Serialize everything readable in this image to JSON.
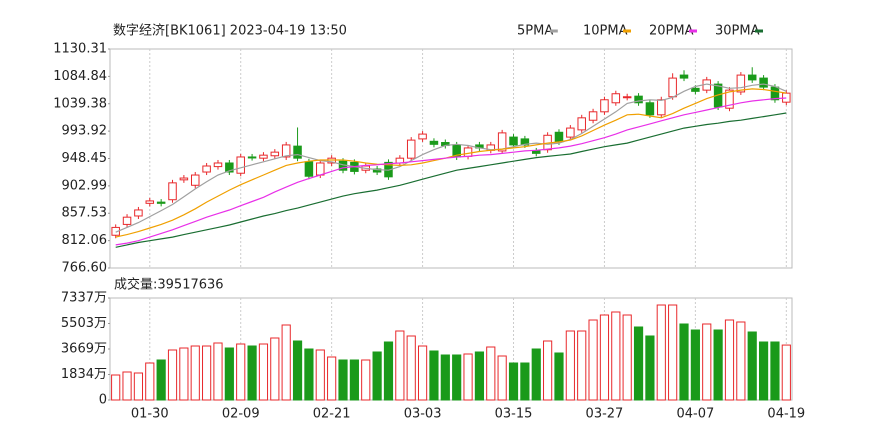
{
  "chart_data": [
    {
      "type": "candlestick",
      "title": "数字经济[BK1061] 2023-04-19 13:50",
      "categories": [
        null,
        null,
        null,
        "01-30",
        null,
        null,
        null,
        null,
        null,
        null,
        null,
        "02-09",
        null,
        null,
        null,
        null,
        null,
        null,
        null,
        "02-21",
        null,
        null,
        null,
        null,
        null,
        null,
        null,
        "03-03",
        null,
        null,
        null,
        null,
        null,
        null,
        null,
        "03-15",
        null,
        null,
        null,
        null,
        null,
        null,
        null,
        "03-27",
        null,
        null,
        null,
        null,
        null,
        null,
        null,
        "04-07",
        null,
        null,
        null,
        null,
        null,
        null,
        null,
        "04-19"
      ],
      "open": [
        821,
        839,
        853,
        874,
        876,
        880,
        913,
        904,
        926,
        935,
        941,
        924,
        951,
        949,
        953,
        951,
        969,
        943,
        921,
        941,
        944,
        942,
        929,
        931,
        942,
        941,
        949,
        981,
        977,
        975,
        971,
        952,
        971,
        962,
        961,
        984,
        981,
        961,
        963,
        992,
        984,
        996,
        1012,
        1026,
        1041,
        1050,
        1052,
        1041,
        1021,
        1051,
        1087,
        1065,
        1062,
        1072,
        1032,
        1059,
        1087,
        1082,
        1067,
        1042
      ],
      "high": [
        839,
        856,
        868,
        883,
        881,
        913,
        921,
        926,
        941,
        946,
        946,
        956,
        956,
        959,
        964,
        976,
        1000,
        948,
        946,
        954,
        949,
        947,
        941,
        936,
        947,
        954,
        984,
        994,
        982,
        980,
        976,
        971,
        976,
        976,
        996,
        989,
        986,
        966,
        992,
        997,
        1004,
        1021,
        1031,
        1051,
        1061,
        1056,
        1057,
        1046,
        1051,
        1090,
        1095,
        1070,
        1084,
        1077,
        1067,
        1092,
        1100,
        1087,
        1072,
        1062
      ],
      "low": [
        816,
        834,
        848,
        869,
        869,
        875,
        908,
        899,
        921,
        930,
        921,
        919,
        945,
        944,
        948,
        946,
        944,
        914,
        916,
        936,
        924,
        922,
        924,
        921,
        913,
        936,
        944,
        976,
        967,
        965,
        946,
        947,
        961,
        957,
        956,
        966,
        966,
        952,
        958,
        971,
        979,
        991,
        1007,
        1021,
        1036,
        1045,
        1036,
        1016,
        1016,
        1046,
        1077,
        1055,
        1057,
        1029,
        1027,
        1054,
        1074,
        1062,
        1041,
        1037
      ],
      "close": [
        834,
        851,
        863,
        878,
        874,
        908,
        916,
        921,
        936,
        941,
        926,
        951,
        950,
        954,
        959,
        971,
        949,
        919,
        941,
        949,
        929,
        927,
        936,
        926,
        918,
        949,
        979,
        989,
        972,
        970,
        951,
        966,
        966,
        971,
        991,
        971,
        971,
        957,
        987,
        976,
        999,
        1016,
        1026,
        1046,
        1056,
        1051,
        1041,
        1021,
        1046,
        1082,
        1082,
        1060,
        1079,
        1034,
        1062,
        1087,
        1079,
        1067,
        1046,
        1057
      ],
      "up_color": "#e8282b",
      "down_color": "#1a9a1a",
      "series": [
        {
          "name": "5PMA",
          "color": "#a0a0a0",
          "values": [
            826,
            834,
            842,
            852,
            862,
            872,
            885,
            898,
            910,
            921,
            928,
            933,
            938,
            943,
            948,
            953,
            955,
            950,
            945,
            943,
            938,
            935,
            932,
            930,
            929,
            935,
            945,
            955,
            963,
            970,
            972,
            970,
            966,
            963,
            964,
            968,
            972,
            974,
            972,
            974,
            980,
            990,
            1002,
            1014,
            1026,
            1040,
            1044,
            1046,
            1045,
            1050,
            1060,
            1068,
            1072,
            1069,
            1065,
            1066,
            1070,
            1072,
            1068,
            1060
          ]
        },
        {
          "name": "10PMA",
          "color": "#f0a000",
          "values": [
            818,
            822,
            827,
            833,
            839,
            846,
            855,
            865,
            876,
            886,
            896,
            905,
            913,
            921,
            929,
            937,
            941,
            944,
            946,
            946,
            946,
            944,
            941,
            939,
            938,
            937,
            938,
            941,
            945,
            949,
            954,
            957,
            960,
            962,
            964,
            966,
            968,
            971,
            974,
            976,
            979,
            986,
            995,
            1004,
            1012,
            1021,
            1022,
            1019,
            1016,
            1023,
            1032,
            1040,
            1048,
            1054,
            1059,
            1062,
            1064,
            1063,
            1060,
            1057
          ]
        },
        {
          "name": "20PMA",
          "color": "#e830e8",
          "values": [
            805,
            808,
            812,
            818,
            824,
            830,
            837,
            844,
            851,
            857,
            863,
            870,
            877,
            884,
            893,
            901,
            909,
            915,
            921,
            927,
            933,
            935,
            937,
            938,
            940,
            941,
            943,
            945,
            947,
            949,
            951,
            952,
            954,
            955,
            957,
            959,
            961,
            962,
            964,
            966,
            969,
            973,
            978,
            983,
            989,
            996,
            1001,
            1006,
            1011,
            1016,
            1021,
            1025,
            1029,
            1033,
            1037,
            1041,
            1044,
            1046,
            1048,
            1049
          ]
        },
        {
          "name": "30PMA",
          "color": "#1a6e32",
          "values": [
            801,
            805,
            809,
            812,
            815,
            818,
            822,
            826,
            830,
            834,
            838,
            843,
            848,
            853,
            857,
            862,
            866,
            871,
            876,
            881,
            886,
            890,
            893,
            896,
            900,
            904,
            909,
            914,
            919,
            924,
            929,
            932,
            935,
            938,
            941,
            944,
            947,
            950,
            952,
            954,
            956,
            960,
            964,
            968,
            971,
            974,
            979,
            984,
            989,
            994,
            999,
            1002,
            1005,
            1007,
            1010,
            1012,
            1015,
            1018,
            1021,
            1024
          ]
        }
      ],
      "ylim": [
        766.6,
        1130.31
      ],
      "yticks": [
        {
          "value": 766.6,
          "label": "766.60"
        },
        812.06,
        857.53,
        902.99,
        948.45,
        993.92,
        1039.38,
        1084.84,
        1130.31
      ]
    },
    {
      "type": "bar",
      "title": "成交量:39517636",
      "values": [
        1798,
        2014,
        1942,
        2661,
        2877,
        3597,
        3740,
        3884,
        3884,
        4100,
        3740,
        4028,
        3884,
        4028,
        4460,
        5395,
        4244,
        3668,
        3597,
        3093,
        2877,
        2877,
        2877,
        3453,
        4172,
        4963,
        4604,
        3884,
        3525,
        3237,
        3237,
        3309,
        3453,
        3812,
        3165,
        2661,
        2661,
        3668,
        4244,
        3381,
        4963,
        4963,
        5754,
        6114,
        6330,
        6114,
        5251,
        4604,
        6833,
        6833,
        5467,
        5035,
        5467,
        5035,
        5754,
        5611,
        4891,
        4172,
        4172,
        3952
      ],
      "ylim": [
        0,
        7337
      ],
      "yticks": [
        0,
        {
          "value": 1834,
          "label": "1834万"
        },
        {
          "value": 3669,
          "label": "3669万"
        },
        {
          "value": 5503,
          "label": "5503万"
        },
        {
          "value": 7337,
          "label": "7337万"
        }
      ]
    }
  ]
}
